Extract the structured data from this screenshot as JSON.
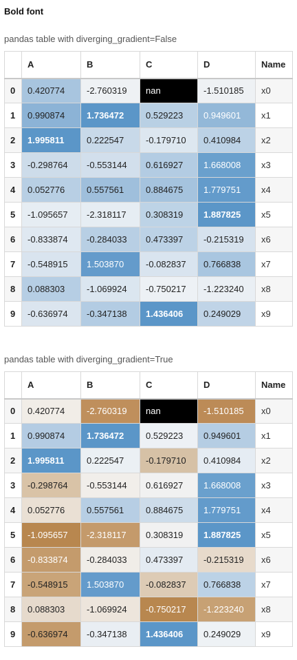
{
  "page_title": "Bold font",
  "tables": [
    {
      "caption": "pandas table with diverging_gradient=False",
      "columns": [
        "A",
        "B",
        "C",
        "D",
        "Name"
      ],
      "rows": [
        {
          "index": "0",
          "cells": [
            {
              "text": "0.420774",
              "bg": "#a8c5df",
              "light": false,
              "bold": false
            },
            {
              "text": "-2.760319",
              "bg": "#eef1f4",
              "light": false,
              "bold": false
            },
            {
              "text": "nan",
              "bg": "#000000",
              "light": true,
              "bold": false
            },
            {
              "text": "-1.510185",
              "bg": "#eef1f4",
              "light": false,
              "bold": false
            }
          ],
          "name": "x0"
        },
        {
          "index": "1",
          "cells": [
            {
              "text": "0.990874",
              "bg": "#8cb3d6",
              "light": false,
              "bold": false
            },
            {
              "text": "1.736472",
              "bg": "#5b96c8",
              "light": true,
              "bold": true
            },
            {
              "text": "0.529223",
              "bg": "#b9d0e4",
              "light": false,
              "bold": false
            },
            {
              "text": "0.949601",
              "bg": "#93b8d8",
              "light": true,
              "bold": false
            }
          ],
          "name": "x1"
        },
        {
          "index": "2",
          "cells": [
            {
              "text": "1.995811",
              "bg": "#5b96c8",
              "light": true,
              "bold": true
            },
            {
              "text": "0.222547",
              "bg": "#c8d9e9",
              "light": false,
              "bold": false
            },
            {
              "text": "-0.179710",
              "bg": "#dde7f0",
              "light": false,
              "bold": false
            },
            {
              "text": "0.410984",
              "bg": "#bcd2e6",
              "light": false,
              "bold": false
            }
          ],
          "name": "x2"
        },
        {
          "index": "3",
          "cells": [
            {
              "text": "-0.298764",
              "bg": "#cddcea",
              "light": false,
              "bold": false
            },
            {
              "text": "-0.553144",
              "bg": "#d2dfec",
              "light": false,
              "bold": false
            },
            {
              "text": "0.616927",
              "bg": "#b3cce3",
              "light": false,
              "bold": false
            },
            {
              "text": "1.668008",
              "bg": "#6aa0cd",
              "light": true,
              "bold": false
            }
          ],
          "name": "x3"
        },
        {
          "index": "4",
          "cells": [
            {
              "text": "0.052776",
              "bg": "#b8cfe4",
              "light": false,
              "bold": false
            },
            {
              "text": "0.557561",
              "bg": "#9fbfdc",
              "light": false,
              "bold": false
            },
            {
              "text": "0.884675",
              "bg": "#a5c3de",
              "light": false,
              "bold": false
            },
            {
              "text": "1.779751",
              "bg": "#639bcb",
              "light": true,
              "bold": false
            }
          ],
          "name": "x4"
        },
        {
          "index": "5",
          "cells": [
            {
              "text": "-1.095657",
              "bg": "#e6edf3",
              "light": false,
              "bold": false
            },
            {
              "text": "-2.318117",
              "bg": "#e6edf3",
              "light": false,
              "bold": false
            },
            {
              "text": "0.308319",
              "bg": "#bdd3e6",
              "light": false,
              "bold": false
            },
            {
              "text": "1.887825",
              "bg": "#5b96c8",
              "light": true,
              "bold": true
            }
          ],
          "name": "x5"
        },
        {
          "index": "6",
          "cells": [
            {
              "text": "-0.833874",
              "bg": "#dfe8f1",
              "light": false,
              "bold": false
            },
            {
              "text": "-0.284033",
              "bg": "#b8cfe4",
              "light": false,
              "bold": false
            },
            {
              "text": "0.473397",
              "bg": "#bcd2e6",
              "light": false,
              "bold": false
            },
            {
              "text": "-0.215319",
              "bg": "#d6e2ee",
              "light": false,
              "bold": false
            }
          ],
          "name": "x6"
        },
        {
          "index": "7",
          "cells": [
            {
              "text": "-0.548915",
              "bg": "#d9e4ef",
              "light": false,
              "bold": false
            },
            {
              "text": "1.503870",
              "bg": "#649bcb",
              "light": true,
              "bold": false
            },
            {
              "text": "-0.082837",
              "bg": "#d9e4ef",
              "light": false,
              "bold": false
            },
            {
              "text": "0.766838",
              "bg": "#a9c6e0",
              "light": false,
              "bold": false
            }
          ],
          "name": "x7"
        },
        {
          "index": "8",
          "cells": [
            {
              "text": "0.088303",
              "bg": "#b6cee4",
              "light": false,
              "bold": false
            },
            {
              "text": "-1.069924",
              "bg": "#dbe6f0",
              "light": false,
              "bold": false
            },
            {
              "text": "-0.750217",
              "bg": "#edf1f5",
              "light": false,
              "bold": false
            },
            {
              "text": "-1.223240",
              "bg": "#eaeff4",
              "light": false,
              "bold": false
            }
          ],
          "name": "x8"
        },
        {
          "index": "9",
          "cells": [
            {
              "text": "-0.636974",
              "bg": "#dbe5ef",
              "light": false,
              "bold": false
            },
            {
              "text": "-0.347138",
              "bg": "#b3cce3",
              "light": false,
              "bold": false
            },
            {
              "text": "1.436406",
              "bg": "#5b96c8",
              "light": true,
              "bold": true
            },
            {
              "text": "0.249029",
              "bg": "#c0d4e7",
              "light": false,
              "bold": false
            }
          ],
          "name": "x9"
        }
      ]
    },
    {
      "caption": "pandas table with diverging_gradient=True",
      "columns": [
        "A",
        "B",
        "C",
        "D",
        "Name"
      ],
      "rows": [
        {
          "index": "0",
          "cells": [
            {
              "text": "0.420774",
              "bg": "#f1ede7",
              "light": false,
              "bold": false
            },
            {
              "text": "-2.760319",
              "bg": "#bf8f5c",
              "light": true,
              "bold": false
            },
            {
              "text": "nan",
              "bg": "#000000",
              "light": true,
              "bold": false
            },
            {
              "text": "-1.510185",
              "bg": "#bc8b57",
              "light": true,
              "bold": false
            }
          ],
          "name": "x0"
        },
        {
          "index": "1",
          "cells": [
            {
              "text": "0.990874",
              "bg": "#b4cce3",
              "light": false,
              "bold": false
            },
            {
              "text": "1.736472",
              "bg": "#5b96c8",
              "light": true,
              "bold": true
            },
            {
              "text": "0.529223",
              "bg": "#edf1f5",
              "light": false,
              "bold": false
            },
            {
              "text": "0.949601",
              "bg": "#b5cde3",
              "light": false,
              "bold": false
            }
          ],
          "name": "x1"
        },
        {
          "index": "2",
          "cells": [
            {
              "text": "1.995811",
              "bg": "#5b96c8",
              "light": true,
              "bold": true
            },
            {
              "text": "0.222547",
              "bg": "#ebf0f4",
              "light": false,
              "bold": false
            },
            {
              "text": "-0.179710",
              "bg": "#d6c1a6",
              "light": false,
              "bold": false
            },
            {
              "text": "0.410984",
              "bg": "#e5ecf3",
              "light": false,
              "bold": false
            }
          ],
          "name": "x2"
        },
        {
          "index": "3",
          "cells": [
            {
              "text": "-0.298764",
              "bg": "#d9c3a7",
              "light": false,
              "bold": false
            },
            {
              "text": "-0.553144",
              "bg": "#f1eeea",
              "light": false,
              "bold": false
            },
            {
              "text": "0.616927",
              "bg": "#f1f1f1",
              "light": false,
              "bold": false
            },
            {
              "text": "1.668008",
              "bg": "#6aa0cd",
              "light": true,
              "bold": false
            }
          ],
          "name": "x3"
        },
        {
          "index": "4",
          "cells": [
            {
              "text": "0.052776",
              "bg": "#eae0d4",
              "light": false,
              "bold": false
            },
            {
              "text": "0.557561",
              "bg": "#b7cee4",
              "light": false,
              "bold": false
            },
            {
              "text": "0.884675",
              "bg": "#cddcea",
              "light": false,
              "bold": false
            },
            {
              "text": "1.779751",
              "bg": "#639bcb",
              "light": true,
              "bold": false
            }
          ],
          "name": "x4"
        },
        {
          "index": "5",
          "cells": [
            {
              "text": "-1.095657",
              "bg": "#b8874f",
              "light": true,
              "bold": false
            },
            {
              "text": "-2.318117",
              "bg": "#c49a6b",
              "light": true,
              "bold": false
            },
            {
              "text": "0.308319",
              "bg": "#f1f1f1",
              "light": false,
              "bold": false
            },
            {
              "text": "1.887825",
              "bg": "#5b96c8",
              "light": true,
              "bold": true
            }
          ],
          "name": "x5"
        },
        {
          "index": "6",
          "cells": [
            {
              "text": "-0.833874",
              "bg": "#c49b6c",
              "light": true,
              "bold": false
            },
            {
              "text": "-0.284033",
              "bg": "#f0ede8",
              "light": false,
              "bold": false
            },
            {
              "text": "0.473397",
              "bg": "#e4ebf2",
              "light": false,
              "bold": false
            },
            {
              "text": "-0.215319",
              "bg": "#e7dacb",
              "light": false,
              "bold": false
            }
          ],
          "name": "x6"
        },
        {
          "index": "7",
          "cells": [
            {
              "text": "-0.548915",
              "bg": "#c9a478",
              "light": false,
              "bold": false
            },
            {
              "text": "1.503870",
              "bg": "#649bcb",
              "light": true,
              "bold": false
            },
            {
              "text": "-0.082837",
              "bg": "#ddcbb5",
              "light": false,
              "bold": false
            },
            {
              "text": "0.766838",
              "bg": "#bcd2e6",
              "light": false,
              "bold": false
            }
          ],
          "name": "x7"
        },
        {
          "index": "8",
          "cells": [
            {
              "text": "0.088303",
              "bg": "#e6dacc",
              "light": false,
              "bold": false
            },
            {
              "text": "-1.069924",
              "bg": "#ede5dc",
              "light": false,
              "bold": false
            },
            {
              "text": "-0.750217",
              "bg": "#b8874f",
              "light": true,
              "bold": false
            },
            {
              "text": "-1.223240",
              "bg": "#c7a174",
              "light": true,
              "bold": false
            }
          ],
          "name": "x8"
        },
        {
          "index": "9",
          "cells": [
            {
              "text": "-0.636974",
              "bg": "#c49b6c",
              "light": false,
              "bold": false
            },
            {
              "text": "-0.347138",
              "bg": "#e9eef3",
              "light": false,
              "bold": false
            },
            {
              "text": "1.436406",
              "bg": "#5b96c8",
              "light": true,
              "bold": true
            },
            {
              "text": "0.249029",
              "bg": "#eef2f5",
              "light": false,
              "bold": false
            }
          ],
          "name": "x9"
        }
      ]
    }
  ]
}
